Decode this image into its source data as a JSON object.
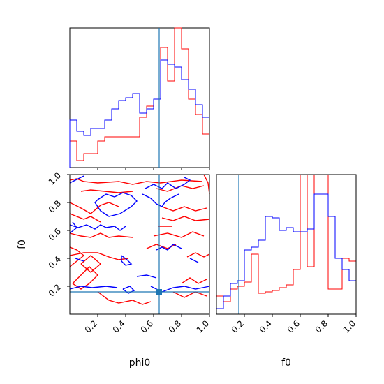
{
  "chart_data": {
    "type": "corner",
    "parameters": [
      "phi0",
      "f0"
    ],
    "colors": {
      "run_a": "#ff0000",
      "run_b": "#0000ff",
      "truth": "#1f77b4"
    },
    "truth": {
      "phi0": 0.64,
      "f0": 0.16
    },
    "xlim": [
      0,
      1
    ],
    "ylim_f0": [
      0,
      1
    ],
    "ticks": [
      "0.2",
      "0.4",
      "0.6",
      "0.8",
      "1.0"
    ],
    "tick_values": [
      0.2,
      0.4,
      0.6,
      0.8,
      1.0
    ],
    "xlabels": {
      "phi0": "phi0",
      "f0": "f0"
    },
    "ylabels": {
      "f0": "f0"
    },
    "hist_phi0": {
      "edges": [
        0,
        0.05,
        0.1,
        0.15,
        0.2,
        0.25,
        0.3,
        0.35,
        0.4,
        0.45,
        0.5,
        0.55,
        0.6,
        0.65,
        0.7,
        0.75,
        0.8,
        0.85,
        0.9,
        0.95,
        1.0
      ],
      "series": [
        {
          "color": "red",
          "values": [
            0.19,
            0.05,
            0.1,
            0.1,
            0.19,
            0.22,
            0.22,
            0.22,
            0.22,
            0.22,
            0.36,
            0.44,
            0.49,
            0.86,
            0.62,
            1.05,
            0.85,
            0.49,
            0.38,
            0.24
          ]
        },
        {
          "color": "blue",
          "values": [
            0.34,
            0.26,
            0.23,
            0.28,
            0.28,
            0.34,
            0.42,
            0.48,
            0.5,
            0.53,
            0.39,
            0.42,
            0.49,
            0.77,
            0.74,
            0.72,
            0.63,
            0.56,
            0.45,
            0.36
          ]
        }
      ]
    },
    "hist_f0": {
      "edges": [
        0,
        0.05,
        0.1,
        0.15,
        0.2,
        0.25,
        0.3,
        0.35,
        0.4,
        0.45,
        0.5,
        0.55,
        0.6,
        0.65,
        0.7,
        0.75,
        0.8,
        0.85,
        0.9,
        0.95,
        1.0
      ],
      "series": [
        {
          "color": "red",
          "values": [
            0.13,
            0.09,
            0.18,
            0.2,
            0.23,
            0.43,
            0.15,
            0.16,
            0.17,
            0.19,
            0.21,
            0.32,
            1.25,
            0.34,
            1.1,
            1.05,
            0.18,
            0.18,
            0.4,
            0.38
          ]
        },
        {
          "color": "blue",
          "values": [
            0.04,
            0.13,
            0.22,
            0.24,
            0.46,
            0.48,
            0.53,
            0.7,
            0.69,
            0.6,
            0.62,
            0.59,
            0.59,
            0.61,
            0.86,
            0.86,
            0.7,
            0.4,
            0.32,
            0.24
          ]
        }
      ]
    },
    "contours_phi0_f0": [
      {
        "color": "red",
        "points": [
          [
            0.0,
            0.96
          ],
          [
            0.05,
            0.97
          ],
          [
            0.1,
            0.95
          ],
          [
            0.2,
            0.94
          ],
          [
            0.35,
            0.95
          ],
          [
            0.45,
            0.93
          ],
          [
            0.55,
            0.95
          ],
          [
            0.65,
            0.94
          ],
          [
            0.8,
            0.96
          ],
          [
            0.95,
            0.95
          ]
        ]
      },
      {
        "color": "red",
        "points": [
          [
            0.08,
            0.88
          ],
          [
            0.15,
            0.89
          ],
          [
            0.25,
            0.88
          ],
          [
            0.35,
            0.87
          ],
          [
            0.45,
            0.88
          ]
        ]
      },
      {
        "color": "red",
        "points": [
          [
            0.0,
            0.8
          ],
          [
            0.08,
            0.76
          ],
          [
            0.15,
            0.72
          ],
          [
            0.22,
            0.78
          ],
          [
            0.28,
            0.8
          ],
          [
            0.35,
            0.77
          ]
        ]
      },
      {
        "color": "red",
        "points": [
          [
            0.0,
            0.72
          ],
          [
            0.05,
            0.7
          ],
          [
            0.1,
            0.68
          ],
          [
            0.15,
            0.7
          ],
          [
            0.22,
            0.66
          ]
        ]
      },
      {
        "color": "red",
        "points": [
          [
            0.0,
            0.58
          ],
          [
            0.08,
            0.56
          ],
          [
            0.15,
            0.55
          ],
          [
            0.22,
            0.58
          ],
          [
            0.28,
            0.55
          ],
          [
            0.35,
            0.56
          ],
          [
            0.45,
            0.55
          ]
        ]
      },
      {
        "color": "red",
        "points": [
          [
            0.0,
            0.42
          ],
          [
            0.1,
            0.44
          ],
          [
            0.2,
            0.44
          ],
          [
            0.28,
            0.41
          ],
          [
            0.35,
            0.39
          ],
          [
            0.42,
            0.4
          ]
        ]
      },
      {
        "color": "red",
        "points": [
          [
            0.0,
            0.34
          ],
          [
            0.05,
            0.38
          ],
          [
            0.1,
            0.42
          ],
          [
            0.05,
            0.46
          ],
          [
            0.0,
            0.48
          ]
        ]
      },
      {
        "color": "red",
        "points": [
          [
            0.02,
            0.22
          ],
          [
            0.08,
            0.28
          ],
          [
            0.14,
            0.34
          ],
          [
            0.2,
            0.28
          ],
          [
            0.14,
            0.22
          ],
          [
            0.08,
            0.18
          ],
          [
            0.02,
            0.22
          ]
        ]
      },
      {
        "color": "red",
        "points": [
          [
            0.08,
            0.36
          ],
          [
            0.15,
            0.42
          ],
          [
            0.22,
            0.36
          ],
          [
            0.15,
            0.3
          ],
          [
            0.08,
            0.36
          ]
        ]
      },
      {
        "color": "red",
        "points": [
          [
            0.2,
            0.16
          ],
          [
            0.28,
            0.1
          ],
          [
            0.35,
            0.08
          ],
          [
            0.45,
            0.1
          ],
          [
            0.52,
            0.07
          ],
          [
            0.58,
            0.09
          ]
        ]
      },
      {
        "color": "red",
        "points": [
          [
            0.62,
            0.9
          ],
          [
            0.7,
            0.88
          ],
          [
            0.8,
            0.92
          ],
          [
            0.88,
            0.9
          ],
          [
            0.96,
            0.92
          ]
        ]
      },
      {
        "color": "red",
        "points": [
          [
            0.66,
            0.77
          ],
          [
            0.74,
            0.74
          ],
          [
            0.82,
            0.77
          ],
          [
            0.9,
            0.74
          ],
          [
            0.98,
            0.76
          ]
        ]
      },
      {
        "color": "red",
        "points": [
          [
            0.66,
            0.69
          ],
          [
            0.74,
            0.67
          ],
          [
            0.82,
            0.7
          ],
          [
            0.9,
            0.67
          ],
          [
            1.0,
            0.68
          ]
        ]
      },
      {
        "color": "red",
        "points": [
          [
            0.63,
            0.63
          ],
          [
            0.73,
            0.63
          ]
        ]
      },
      {
        "color": "red",
        "points": [
          [
            0.6,
            0.56
          ],
          [
            0.7,
            0.58
          ],
          [
            0.8,
            0.55
          ],
          [
            0.88,
            0.59
          ],
          [
            0.96,
            0.56
          ]
        ]
      },
      {
        "color": "red",
        "points": [
          [
            0.55,
            0.47
          ],
          [
            0.62,
            0.5
          ],
          [
            0.7,
            0.47
          ],
          [
            0.76,
            0.5
          ]
        ]
      },
      {
        "color": "red",
        "points": [
          [
            0.84,
            0.41
          ],
          [
            0.9,
            0.44
          ],
          [
            0.96,
            0.41
          ],
          [
            1.0,
            0.43
          ]
        ]
      },
      {
        "color": "red",
        "points": [
          [
            0.8,
            0.22
          ],
          [
            0.86,
            0.26
          ],
          [
            0.92,
            0.22
          ],
          [
            0.98,
            0.25
          ]
        ]
      },
      {
        "color": "red",
        "points": [
          [
            0.74,
            0.16
          ],
          [
            0.82,
            0.12
          ],
          [
            0.9,
            0.16
          ],
          [
            0.98,
            0.13
          ]
        ]
      },
      {
        "color": "red",
        "points": [
          [
            0.96,
            1.0
          ],
          [
            0.99,
            0.94
          ],
          [
            1.0,
            0.86
          ]
        ]
      },
      {
        "color": "blue",
        "points": [
          [
            0.0,
            0.94
          ],
          [
            0.06,
            0.97
          ],
          [
            0.1,
            0.99
          ]
        ]
      },
      {
        "color": "blue",
        "points": [
          [
            0.2,
            0.82
          ],
          [
            0.26,
            0.86
          ],
          [
            0.32,
            0.84
          ],
          [
            0.38,
            0.87
          ],
          [
            0.44,
            0.85
          ],
          [
            0.48,
            0.81
          ],
          [
            0.44,
            0.77
          ],
          [
            0.36,
            0.72
          ],
          [
            0.28,
            0.7
          ],
          [
            0.22,
            0.74
          ],
          [
            0.18,
            0.8
          ],
          [
            0.2,
            0.82
          ]
        ]
      },
      {
        "color": "blue",
        "points": [
          [
            0.0,
            0.64
          ],
          [
            0.06,
            0.62
          ],
          [
            0.12,
            0.64
          ],
          [
            0.18,
            0.61
          ],
          [
            0.22,
            0.64
          ],
          [
            0.26,
            0.62
          ],
          [
            0.32,
            0.63
          ],
          [
            0.36,
            0.6
          ],
          [
            0.4,
            0.63
          ]
        ]
      },
      {
        "color": "blue",
        "points": [
          [
            0.0,
            0.58
          ],
          [
            0.05,
            0.62
          ],
          [
            0.02,
            0.66
          ]
        ]
      },
      {
        "color": "blue",
        "points": [
          [
            0.37,
            0.42
          ],
          [
            0.41,
            0.39
          ],
          [
            0.44,
            0.36
          ],
          [
            0.4,
            0.35
          ],
          [
            0.37,
            0.38
          ],
          [
            0.37,
            0.42
          ]
        ]
      },
      {
        "color": "blue",
        "points": [
          [
            0.38,
            0.18
          ],
          [
            0.43,
            0.2
          ],
          [
            0.46,
            0.17
          ],
          [
            0.42,
            0.15
          ],
          [
            0.38,
            0.18
          ]
        ]
      },
      {
        "color": "blue",
        "points": [
          [
            0.0,
            0.18
          ],
          [
            0.08,
            0.2
          ],
          [
            0.16,
            0.19
          ],
          [
            0.26,
            0.2
          ],
          [
            0.34,
            0.19
          ]
        ]
      },
      {
        "color": "blue",
        "points": [
          [
            0.04,
            0.4
          ],
          [
            0.1,
            0.38
          ]
        ]
      },
      {
        "color": "blue",
        "points": [
          [
            0.48,
            0.27
          ],
          [
            0.55,
            0.28
          ],
          [
            0.62,
            0.26
          ]
        ]
      },
      {
        "color": "blue",
        "points": [
          [
            0.58,
            0.2
          ],
          [
            0.66,
            0.16
          ],
          [
            0.74,
            0.19
          ],
          [
            0.82,
            0.2
          ],
          [
            0.9,
            0.18
          ],
          [
            1.0,
            0.2
          ]
        ]
      },
      {
        "color": "blue",
        "points": [
          [
            0.54,
            0.9
          ],
          [
            0.6,
            0.93
          ],
          [
            0.66,
            0.9
          ],
          [
            0.7,
            0.94
          ],
          [
            0.76,
            0.9
          ],
          [
            0.82,
            0.93
          ],
          [
            0.86,
            0.96
          ],
          [
            0.82,
            0.98
          ]
        ]
      },
      {
        "color": "blue",
        "points": [
          [
            0.52,
            0.86
          ],
          [
            0.58,
            0.83
          ],
          [
            0.62,
            0.79
          ],
          [
            0.66,
            0.77
          ],
          [
            0.68,
            0.8
          ],
          [
            0.72,
            0.83
          ],
          [
            0.78,
            0.86
          ]
        ]
      },
      {
        "color": "blue",
        "points": [
          [
            0.62,
            0.46
          ],
          [
            0.66,
            0.48
          ],
          [
            0.7,
            0.46
          ],
          [
            0.74,
            0.5
          ],
          [
            0.8,
            0.47
          ]
        ]
      },
      {
        "color": "blue",
        "points": [
          [
            0.86,
            0.4
          ],
          [
            0.92,
            0.37
          ]
        ]
      }
    ]
  }
}
